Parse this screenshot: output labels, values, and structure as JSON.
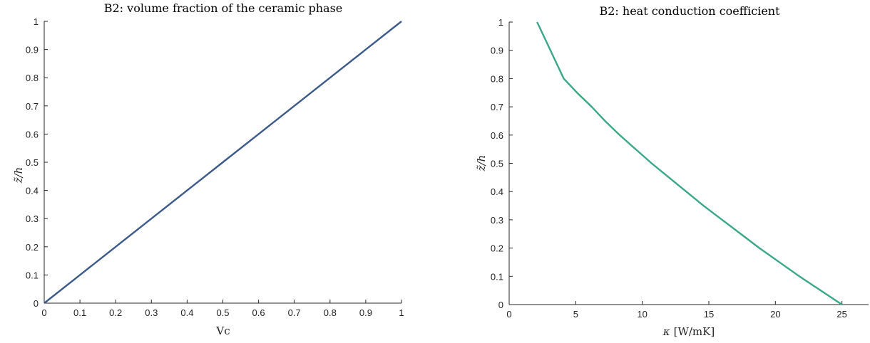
{
  "chart_data": [
    {
      "type": "line",
      "title": "B2:  volume fraction of the ceramic phase",
      "xlabel": "Vc",
      "ylabel": "z̃/h",
      "xlim": [
        0,
        1
      ],
      "ylim": [
        0,
        1
      ],
      "xticks": [
        0,
        0.1,
        0.2,
        0.3,
        0.4,
        0.5,
        0.6,
        0.7,
        0.8,
        0.9,
        1
      ],
      "xtick_labels": [
        "0",
        "0.1",
        "0.2",
        "0.3",
        "0.4",
        "0.5",
        "0.6",
        "0.7",
        "0.8",
        "0.9",
        "1"
      ],
      "yticks": [
        0,
        0.1,
        0.2,
        0.3,
        0.4,
        0.5,
        0.6,
        0.7,
        0.8,
        0.9,
        1
      ],
      "ytick_labels": [
        "0",
        "0.1",
        "0.2",
        "0.3",
        "0.4",
        "0.5",
        "0.6",
        "0.7",
        "0.8",
        "0.9",
        "1"
      ],
      "grid": false,
      "series": [
        {
          "color": "#3b5a8a",
          "x": [
            0,
            0.1,
            0.2,
            0.3,
            0.4,
            0.5,
            0.6,
            0.7,
            0.8,
            0.9,
            1
          ],
          "y": [
            0,
            0.1,
            0.2,
            0.3,
            0.4,
            0.5,
            0.6,
            0.7,
            0.8,
            0.9,
            1
          ]
        }
      ]
    },
    {
      "type": "line",
      "title": "B2:  heat conduction coefficient",
      "xlabel_symbol": "κ",
      "xlabel_unit": "[W/mK]",
      "ylabel": "z̃/h",
      "xlim": [
        0,
        27
      ],
      "ylim": [
        0,
        1
      ],
      "xticks": [
        0,
        5,
        10,
        15,
        20,
        25
      ],
      "xtick_labels": [
        "0",
        "5",
        "10",
        "15",
        "20",
        "25"
      ],
      "yticks": [
        0,
        0.1,
        0.2,
        0.3,
        0.4,
        0.5,
        0.6,
        0.7,
        0.8,
        0.9,
        1
      ],
      "ytick_labels": [
        "0",
        "0.1",
        "0.2",
        "0.3",
        "0.4",
        "0.5",
        "0.6",
        "0.7",
        "0.8",
        "0.9",
        "1"
      ],
      "grid": false,
      "series": [
        {
          "color": "#3aa888",
          "x": [
            25,
            23.4,
            21.8,
            20.3,
            18.8,
            17.4,
            16.0,
            14.6,
            13.3,
            12.0,
            10.7,
            9.5,
            8.3,
            7.2,
            6.2,
            5.1,
            4.1,
            3.1,
            2.1
          ],
          "y": [
            0,
            0.05,
            0.1,
            0.15,
            0.2,
            0.25,
            0.3,
            0.35,
            0.4,
            0.45,
            0.5,
            0.55,
            0.6,
            0.65,
            0.7,
            0.75,
            0.8,
            0.9,
            1.0
          ]
        }
      ]
    }
  ]
}
